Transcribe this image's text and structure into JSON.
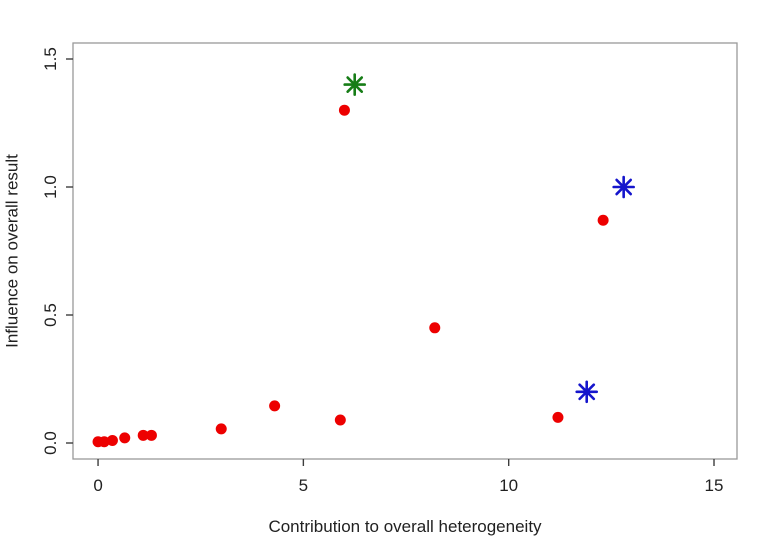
{
  "chart_data": {
    "type": "scatter",
    "title": "",
    "xlabel": "Contribution to overall heterogeneity",
    "ylabel": "Influence on overall result",
    "xlim": [
      -0.61,
      15.56
    ],
    "ylim": [
      -0.0625,
      1.5625
    ],
    "grid": false,
    "legend": "none",
    "x_ticks": [
      {
        "value": 0,
        "label": "0"
      },
      {
        "value": 5,
        "label": "5"
      },
      {
        "value": 10,
        "label": "10"
      },
      {
        "value": 15,
        "label": "15"
      }
    ],
    "y_ticks": [
      {
        "value": 0,
        "label": "0.0"
      },
      {
        "value": 0.5,
        "label": "0.5"
      },
      {
        "value": 1,
        "label": "1.0"
      },
      {
        "value": 1.5,
        "label": "1.5"
      }
    ],
    "series": [
      {
        "name": "studies",
        "marker": "circle",
        "color": "#ed0000",
        "size": 5.5,
        "points": [
          [
            0.0,
            0.005
          ],
          [
            0.15,
            0.005
          ],
          [
            0.35,
            0.01
          ],
          [
            0.65,
            0.02
          ],
          [
            1.1,
            0.03
          ],
          [
            1.3,
            0.03
          ],
          [
            3.0,
            0.055
          ],
          [
            4.3,
            0.145
          ],
          [
            5.9,
            0.09
          ],
          [
            6.0,
            1.3
          ],
          [
            8.2,
            0.45
          ],
          [
            11.2,
            0.1
          ],
          [
            12.3,
            0.87
          ]
        ]
      },
      {
        "name": "highlight-green",
        "marker": "asterisk",
        "color": "#177d17",
        "size": 10,
        "stroke_width": 2.6,
        "points": [
          [
            6.25,
            1.4
          ]
        ]
      },
      {
        "name": "highlight-blue",
        "marker": "asterisk",
        "color": "#1515cc",
        "size": 10,
        "stroke_width": 2.6,
        "points": [
          [
            12.8,
            1.0
          ],
          [
            11.9,
            0.2
          ]
        ]
      }
    ],
    "colors": {
      "axis_box": "#999999",
      "tick": "#3d3d3d",
      "text": "#212121",
      "background": "#ffffff"
    }
  }
}
